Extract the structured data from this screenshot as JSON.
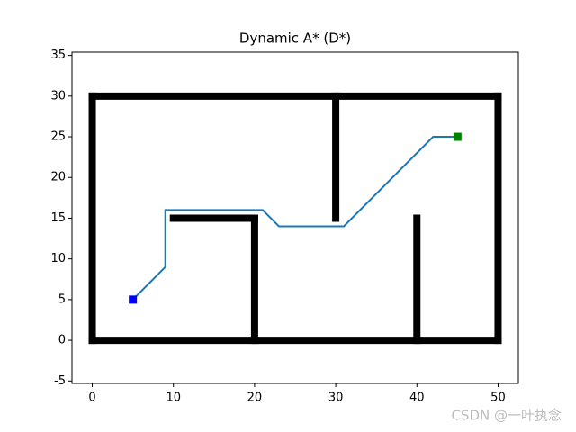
{
  "chart_data": {
    "type": "line",
    "title": "Dynamic A* (D*)",
    "xlim": [
      -2.5,
      52.5
    ],
    "ylim": [
      -5.3,
      35.4
    ],
    "xticks": [
      0,
      10,
      20,
      30,
      40,
      50
    ],
    "yticks": [
      -5,
      0,
      5,
      10,
      15,
      20,
      25,
      30,
      35
    ],
    "walls": {
      "color": "#000000",
      "segments": [
        {
          "x": [
            0,
            50
          ],
          "y": [
            0,
            0
          ]
        },
        {
          "x": [
            0,
            50
          ],
          "y": [
            30,
            30
          ]
        },
        {
          "x": [
            0,
            0
          ],
          "y": [
            0,
            30
          ]
        },
        {
          "x": [
            50,
            50
          ],
          "y": [
            0,
            30
          ]
        },
        {
          "x": [
            20,
            20
          ],
          "y": [
            0,
            15
          ]
        },
        {
          "x": [
            10,
            20
          ],
          "y": [
            15,
            15
          ]
        },
        {
          "x": [
            30,
            30
          ],
          "y": [
            15,
            30
          ]
        },
        {
          "x": [
            40,
            40
          ],
          "y": [
            0,
            15
          ]
        }
      ]
    },
    "path": {
      "color": "#1f77b4",
      "x": [
        5,
        9,
        9,
        21,
        23,
        31,
        42,
        45
      ],
      "y": [
        5,
        9,
        16,
        16,
        14,
        14,
        25,
        25
      ]
    },
    "start": {
      "color": "#0000ff",
      "x": 5,
      "y": 5
    },
    "goal": {
      "color": "#008000",
      "x": 45,
      "y": 25
    }
  },
  "watermark": "CSDN @一叶执念"
}
